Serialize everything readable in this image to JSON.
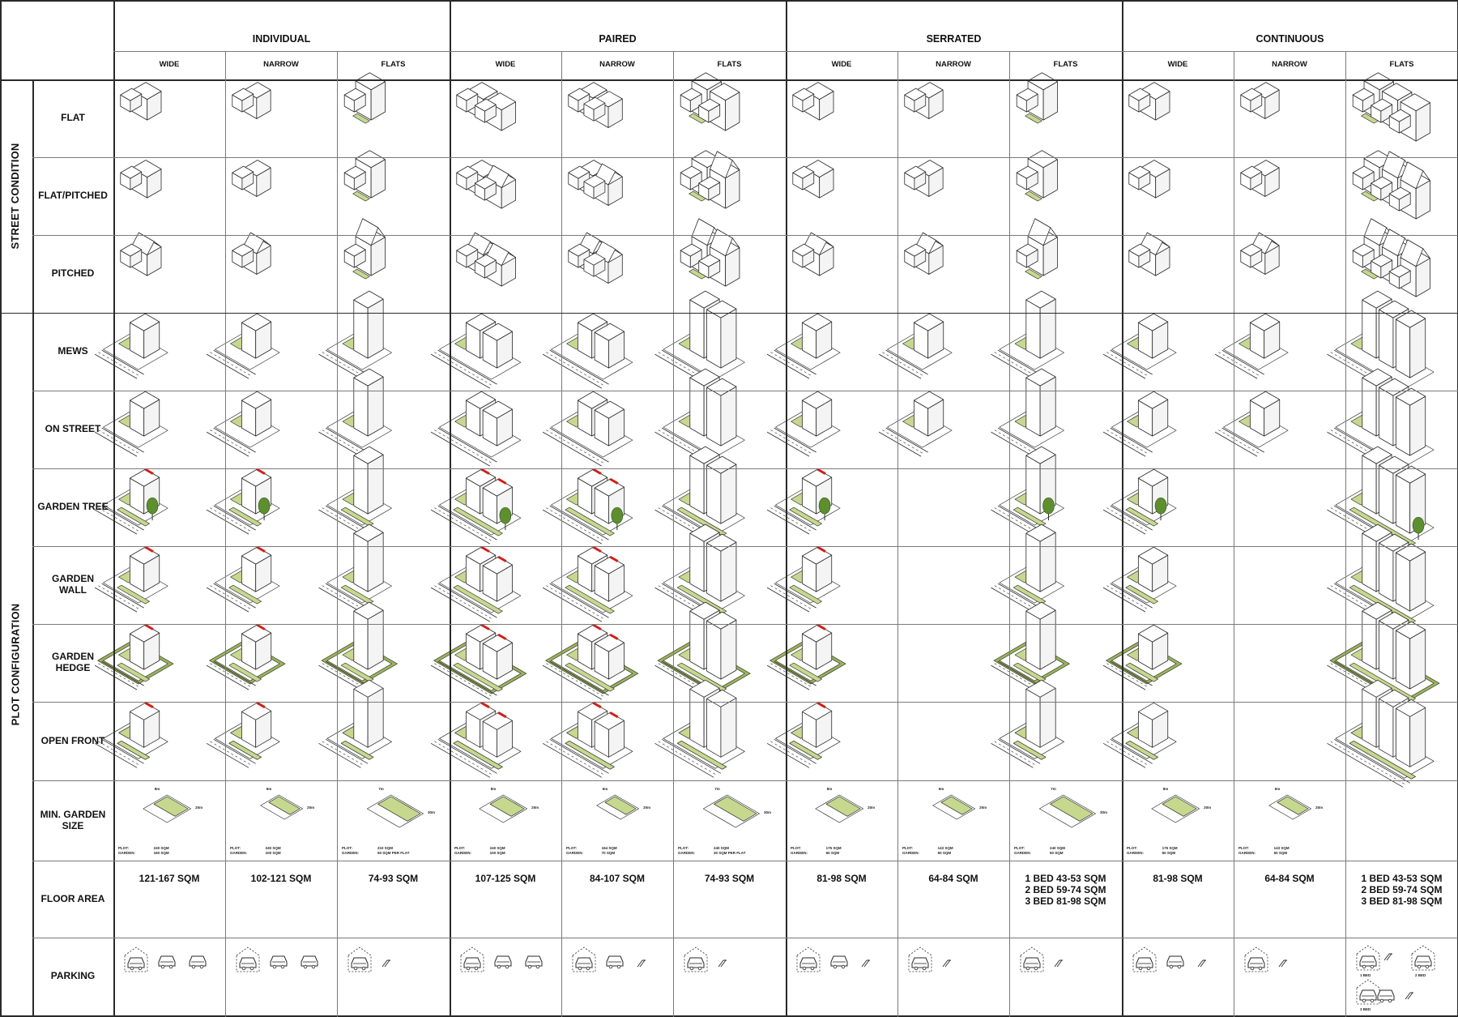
{
  "header": {
    "groups": [
      {
        "label": "INDIVIDUAL",
        "subs": [
          "WIDE",
          "NARROW",
          "FLATS"
        ]
      },
      {
        "label": "PAIRED",
        "subs": [
          "WIDE",
          "NARROW",
          "FLATS"
        ]
      },
      {
        "label": "SERRATED",
        "subs": [
          "WIDE",
          "NARROW",
          "FLATS"
        ]
      },
      {
        "label": "CONTINUOUS",
        "subs": [
          "WIDE",
          "NARROW",
          "FLATS"
        ]
      }
    ]
  },
  "sections": [
    {
      "label": "STREET CONDITION",
      "rows": [
        "FLAT",
        "FLAT/PITCHED",
        "PITCHED"
      ]
    },
    {
      "label": "PLOT CONFIGURATION",
      "rows": [
        "MEWS",
        "ON STREET",
        "GARDEN TREE",
        "GARDEN WALL",
        "GARDEN HEDGE",
        "OPEN FRONT",
        "MIN. GARDEN SIZE",
        "FLOOR AREA",
        "PARKING"
      ]
    }
  ],
  "floor_area": [
    "121-167 SQM",
    "102-121 SQM",
    "74-93 SQM",
    "107-125 SQM",
    "84-107 SQM",
    "74-93 SQM",
    "81-98 SQM",
    "64-84 SQM",
    "1 BED 43-53 SQM\n2 BED 59-74 SQM\n3 BED 81-98 SQM",
    "81-98 SQM",
    "64-84 SQM",
    "1 BED 43-53 SQM\n2 BED 59-74 SQM\n3 BED 81-98 SQM"
  ],
  "garden_size": [
    {
      "plot_label": "PLOT:",
      "garden_label": "GARDEN:",
      "plot": "240 SQM",
      "garden": "160 SQM",
      "dim_a": "8m",
      "dim_b": "20m"
    },
    {
      "plot_label": "PLOT:",
      "garden_label": "GARDEN:",
      "plot": "240 SQM",
      "garden": "100 SQM",
      "dim_a": "6m",
      "dim_b": "20m"
    },
    {
      "plot_label": "PLOT:",
      "garden_label": "GARDEN:",
      "plot": "210 SQM",
      "garden": "50 SQM PER FLAT",
      "dim_a": "7m",
      "dim_b": "30m"
    },
    {
      "plot_label": "PLOT:",
      "garden_label": "GARDEN:",
      "plot": "240 SQM",
      "garden": "100 SQM",
      "dim_a": "8m",
      "dim_b": "20m"
    },
    {
      "plot_label": "PLOT:",
      "garden_label": "GARDEN:",
      "plot": "164 SQM",
      "garden": "70 SQM",
      "dim_a": "6m",
      "dim_b": "20m"
    },
    {
      "plot_label": "PLOT:",
      "garden_label": "GARDEN:",
      "plot": "240 SQM",
      "garden": "30 SQM PER FLAT",
      "dim_a": "7m",
      "dim_b": "30m"
    },
    {
      "plot_label": "PLOT:",
      "garden_label": "GARDEN:",
      "plot": "175 SQM",
      "garden": "60 SQM",
      "dim_a": "8m",
      "dim_b": "20m"
    },
    {
      "plot_label": "PLOT:",
      "garden_label": "GARDEN:",
      "plot": "143 SQM",
      "garden": "50 SQM",
      "dim_a": "6m",
      "dim_b": "20m"
    },
    {
      "plot_label": "PLOT:",
      "garden_label": "GARDEN:",
      "plot": "240 SQM",
      "garden": "50 SQM",
      "dim_a": "7m",
      "dim_b": "30m"
    },
    {
      "plot_label": "PLOT:",
      "garden_label": "GARDEN:",
      "plot": "175 SQM",
      "garden": "60 SQM",
      "dim_a": "8m",
      "dim_b": "20m"
    },
    {
      "plot_label": "PLOT:",
      "garden_label": "GARDEN:",
      "plot": "143 SQM",
      "garden": "50 SQM",
      "dim_a": "6m",
      "dim_b": "20m"
    },
    null
  ],
  "parking": [
    {
      "icons": [
        "garage",
        "car",
        "car"
      ]
    },
    {
      "icons": [
        "garage",
        "car",
        "car"
      ]
    },
    {
      "icons": [
        "garage",
        "bike"
      ]
    },
    {
      "icons": [
        "garage",
        "car",
        "car"
      ]
    },
    {
      "icons": [
        "garage",
        "car",
        "bike"
      ]
    },
    {
      "icons": [
        "garage",
        "bike"
      ]
    },
    {
      "icons": [
        "garage",
        "car",
        "bike"
      ]
    },
    {
      "icons": [
        "garage",
        "bike"
      ]
    },
    {
      "icons": [
        "garage",
        "bike"
      ]
    },
    {
      "icons": [
        "garage",
        "car",
        "bike"
      ]
    },
    {
      "icons": [
        "garage",
        "bike"
      ]
    },
    {
      "icons": [
        "garage",
        "bike",
        "garage",
        "garage",
        "car",
        "bike"
      ],
      "captions": [
        "1 BED",
        "2 BED",
        "3 BED"
      ]
    }
  ],
  "colors": {
    "garden": "#c6d88e",
    "garden_dark": "#9ab35a",
    "accent": "#d0201a",
    "tree": "#5e8f2e",
    "line": "#2a2a2a"
  }
}
